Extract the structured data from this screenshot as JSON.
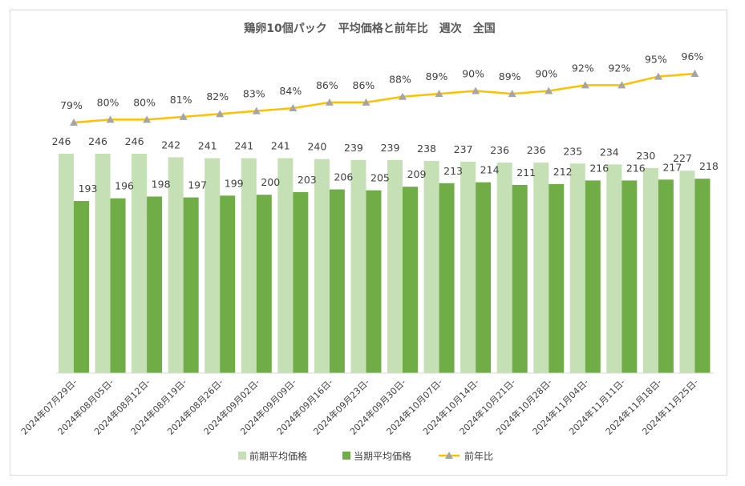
{
  "chart_data": {
    "type": "bar+line",
    "title": "鶏卵10個パック　平均価格と前年比　週次　全国",
    "categories": [
      "2024年07月29日-",
      "2024年08月05日-",
      "2024年08月12日-",
      "2024年08月19日-",
      "2024年08月26日-",
      "2024年09月02日-",
      "2024年09月09日-",
      "2024年09月16日-",
      "2024年09月23日-",
      "2024年09月30日-",
      "2024年10月07日-",
      "2024年10月14日-",
      "2024年10月21日-",
      "2024年10月28日-",
      "2024年11月04日-",
      "2024年11月11日-",
      "2024年11月18日-",
      "2024年11月25日-"
    ],
    "series": [
      {
        "name": "前期平均価格",
        "type": "bar",
        "color": "#c5e0b4",
        "values": [
          246,
          246,
          246,
          242,
          241,
          241,
          241,
          240,
          239,
          239,
          238,
          237,
          236,
          236,
          235,
          234,
          230,
          227
        ]
      },
      {
        "name": "当期平均価格",
        "type": "bar",
        "color": "#70ad47",
        "values": [
          193,
          196,
          198,
          197,
          199,
          200,
          203,
          206,
          205,
          209,
          213,
          214,
          211,
          212,
          216,
          216,
          217,
          218
        ]
      },
      {
        "name": "前年比",
        "type": "line",
        "color": "#ffc000",
        "marker_color": "#a5a5a5",
        "unit": "%",
        "values": [
          79,
          80,
          80,
          81,
          82,
          83,
          84,
          86,
          86,
          88,
          89,
          90,
          89,
          90,
          92,
          92,
          95,
          96
        ]
      }
    ],
    "bar_ylim": [
      0,
      246
    ],
    "line_ylim": [
      79,
      96
    ],
    "legend": "bottom",
    "grid": false
  }
}
